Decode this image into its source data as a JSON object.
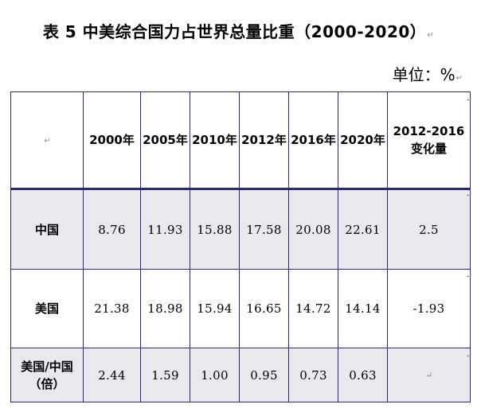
{
  "title": "表 5  中美综合国力占世界总量比重（2000-2020）",
  "unit": "单位：%",
  "table": {
    "headers": [
      "",
      "2000年",
      "2005年",
      "2010年",
      "2012年",
      "2016年",
      "2020年",
      "2012-2016变化量"
    ],
    "rows": [
      {
        "label": "中国",
        "values": [
          "8.76",
          "11.93",
          "15.88",
          "17.58",
          "20.08",
          "22.61",
          "2.5"
        ]
      },
      {
        "label": "美国",
        "values": [
          "21.38",
          "18.98",
          "15.94",
          "16.65",
          "14.72",
          "14.14",
          "-1.93"
        ]
      },
      {
        "label": "美国/中国（倍）",
        "values": [
          "2.44",
          "1.59",
          "1.00",
          "0.95",
          "0.73",
          "0.63",
          ""
        ]
      }
    ]
  }
}
